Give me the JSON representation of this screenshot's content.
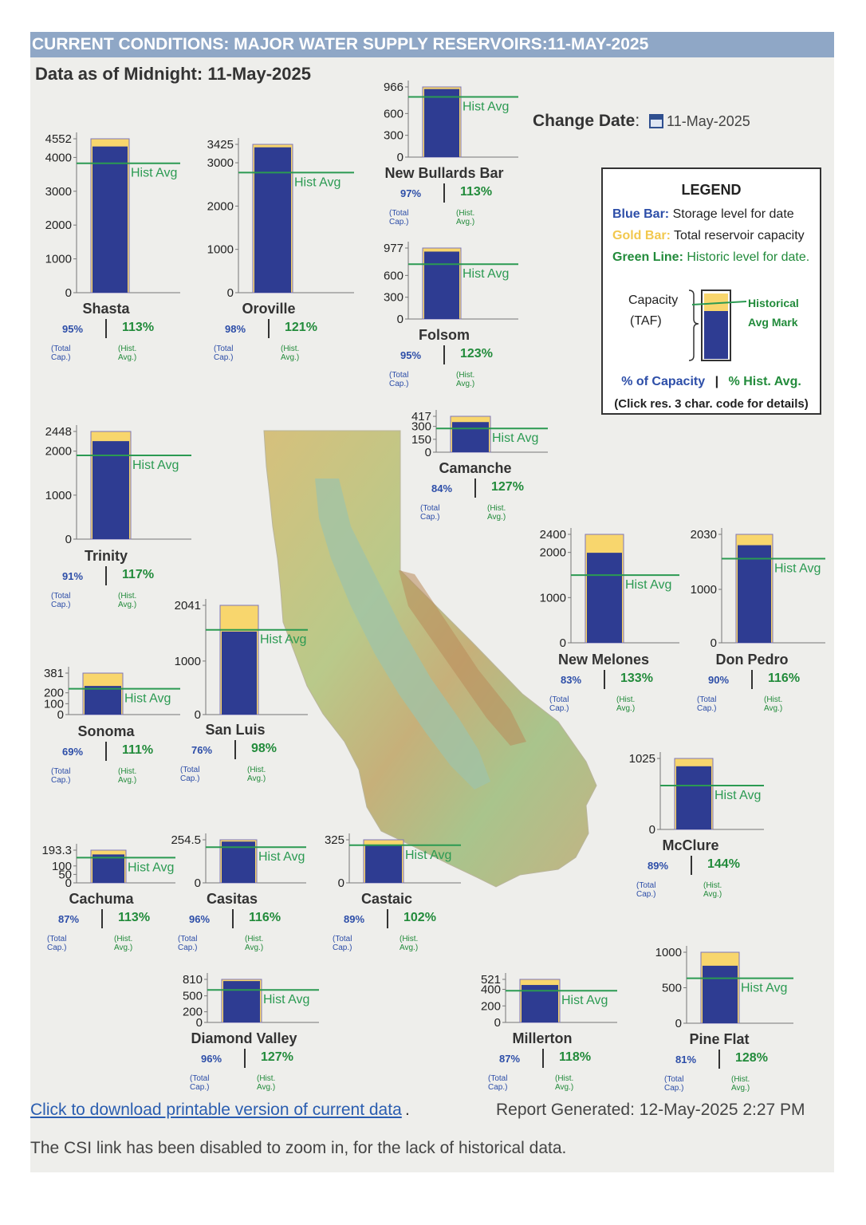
{
  "header": {
    "title": "CURRENT CONDITIONS: MAJOR WATER SUPPLY RESERVOIRS:11-MAY-2025",
    "as_of": "Data as of Midnight: 11-May-2025",
    "change_date_label": "Change Date",
    "change_date_colon": ":",
    "change_date_value": "11-May-2025"
  },
  "legend": {
    "title": "LEGEND",
    "blue_label": "Blue Bar:",
    "blue_text": "Storage level for date",
    "gold_label": "Gold Bar:",
    "gold_text": "Total reservoir capacity",
    "green_label": "Green Line:",
    "green_text": "Historic level for date.",
    "capacity_line1": "Capacity",
    "capacity_line2": "(TAF)",
    "hist_line1": "Historical",
    "hist_line2": "Avg Mark",
    "foot_capacity": "% of Capacity",
    "foot_sep": "|",
    "foot_hist": "% Hist. Avg.",
    "foot_note": "(Click res. 3 char. code for details)"
  },
  "colors": {
    "storage": "#2e3c92",
    "capacity": "#f8d66d",
    "hist_line": "#2b9a52",
    "pct_capacity": "#2d4ea8",
    "pct_hist": "#228b3b"
  },
  "labels": {
    "hist_avg": "Hist Avg",
    "total_cap": "(Total Cap.)",
    "hist_avg_small": "(Hist. Avg.)",
    "sep": "|"
  },
  "chart_data": {
    "type": "bar",
    "units": "TAF",
    "reservoirs": [
      {
        "name": "Shasta",
        "capacity": 4552,
        "storage": 4324,
        "hist_avg": 3827,
        "ticks": [
          0,
          1000,
          2000,
          3000,
          4000,
          4552
        ],
        "pct_capacity": "95%",
        "pct_hist": "113%"
      },
      {
        "name": "Oroville",
        "capacity": 3425,
        "storage": 3357,
        "hist_avg": 2774,
        "ticks": [
          0,
          1000,
          2000,
          3000,
          3425
        ],
        "pct_capacity": "98%",
        "pct_hist": "121%"
      },
      {
        "name": "New Bullards Bar",
        "capacity": 966,
        "storage": 937,
        "hist_avg": 829,
        "ticks": [
          0,
          300,
          600,
          966
        ],
        "pct_capacity": "97%",
        "pct_hist": "113%"
      },
      {
        "name": "Folsom",
        "capacity": 977,
        "storage": 928,
        "hist_avg": 755,
        "ticks": [
          0,
          300,
          600,
          977
        ],
        "pct_capacity": "95%",
        "pct_hist": "123%"
      },
      {
        "name": "Trinity",
        "capacity": 2448,
        "storage": 2228,
        "hist_avg": 1904,
        "ticks": [
          0,
          1000,
          2000,
          2448
        ],
        "pct_capacity": "91%",
        "pct_hist": "117%"
      },
      {
        "name": "Camanche",
        "capacity": 417,
        "storage": 350,
        "hist_avg": 276,
        "ticks": [
          0,
          150,
          300,
          417
        ],
        "pct_capacity": "84%",
        "pct_hist": "127%"
      },
      {
        "name": "New Melones",
        "capacity": 2400,
        "storage": 1992,
        "hist_avg": 1498,
        "ticks": [
          0,
          1000,
          2000,
          2400
        ],
        "pct_capacity": "83%",
        "pct_hist": "133%"
      },
      {
        "name": "Don Pedro",
        "capacity": 2030,
        "storage": 1827,
        "hist_avg": 1575,
        "ticks": [
          0,
          1000,
          2030
        ],
        "pct_capacity": "90%",
        "pct_hist": "116%"
      },
      {
        "name": "Sonoma",
        "capacity": 381,
        "storage": 263,
        "hist_avg": 237,
        "ticks": [
          0,
          100,
          200,
          381
        ],
        "pct_capacity": "69%",
        "pct_hist": "111%"
      },
      {
        "name": "San Luis",
        "capacity": 2041,
        "storage": 1551,
        "hist_avg": 1583,
        "ticks": [
          0,
          1000,
          2041
        ],
        "pct_capacity": "76%",
        "pct_hist": "98%"
      },
      {
        "name": "McClure",
        "capacity": 1025,
        "storage": 912,
        "hist_avg": 633,
        "ticks": [
          0,
          1025
        ],
        "pct_capacity": "89%",
        "pct_hist": "144%"
      },
      {
        "name": "Cachuma",
        "capacity": 193.3,
        "storage": 168,
        "hist_avg": 149,
        "ticks": [
          0,
          50,
          100,
          193.3
        ],
        "pct_capacity": "87%",
        "pct_hist": "113%"
      },
      {
        "name": "Casitas",
        "capacity": 254.5,
        "storage": 244,
        "hist_avg": 211,
        "ticks": [
          0,
          254.5
        ],
        "pct_capacity": "96%",
        "pct_hist": "116%"
      },
      {
        "name": "Castaic",
        "capacity": 325,
        "storage": 289,
        "hist_avg": 284,
        "ticks": [
          0,
          325
        ],
        "pct_capacity": "89%",
        "pct_hist": "102%"
      },
      {
        "name": "Diamond Valley",
        "capacity": 810,
        "storage": 778,
        "hist_avg": 612,
        "ticks": [
          0,
          200,
          500,
          810
        ],
        "pct_capacity": "96%",
        "pct_hist": "127%"
      },
      {
        "name": "Millerton",
        "capacity": 521,
        "storage": 453,
        "hist_avg": 384,
        "ticks": [
          0,
          200,
          400,
          521
        ],
        "pct_capacity": "87%",
        "pct_hist": "118%"
      },
      {
        "name": "Pine Flat",
        "capacity": 1000,
        "storage": 810,
        "hist_avg": 633,
        "ticks": [
          0,
          500,
          1000
        ],
        "pct_capacity": "81%",
        "pct_hist": "128%"
      }
    ]
  },
  "footer": {
    "download_link": "Click to download printable version of current data",
    "download_dot": ".",
    "generated": "Report Generated: 12-May-2025 2:27 PM",
    "note": "The CSI link has been disabled to zoom in, for the lack of historical data."
  }
}
